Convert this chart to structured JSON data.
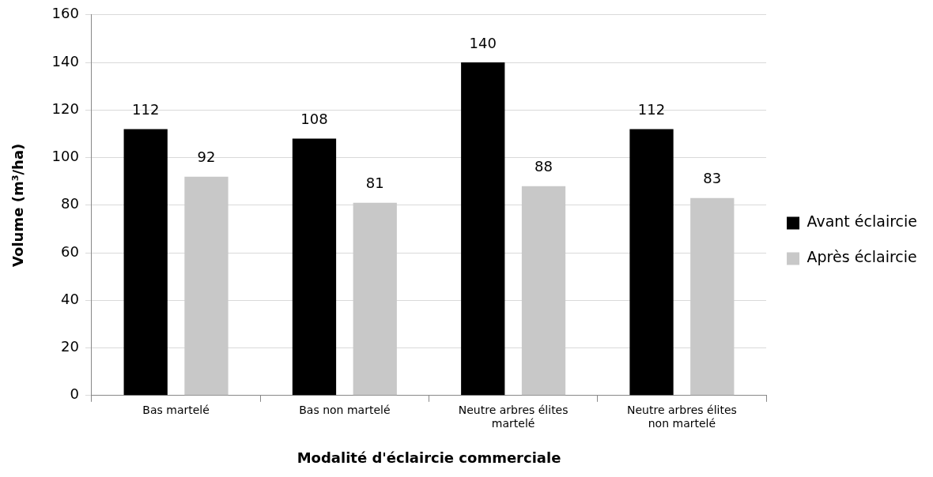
{
  "chart_data": {
    "type": "bar",
    "xlabel": "Modalité d'éclaircie commerciale",
    "ylabel": "Volume (m³/ha)",
    "categories": [
      "Bas martelé",
      "Bas non martelé",
      "Neutre arbres élites martelé",
      "Neutre arbres élites non martelé"
    ],
    "series": [
      {
        "name": "Avant éclaircie",
        "color": "#000000",
        "values": [
          112,
          108,
          140,
          112
        ]
      },
      {
        "name": "Après éclaircie",
        "color": "#c8c8c8",
        "values": [
          92,
          81,
          88,
          83
        ]
      }
    ],
    "ylim": [
      0,
      160
    ],
    "yticks": [
      0,
      20,
      40,
      60,
      80,
      100,
      120,
      140,
      160
    ],
    "grid": "y",
    "legend": "right",
    "data_labels": true
  }
}
